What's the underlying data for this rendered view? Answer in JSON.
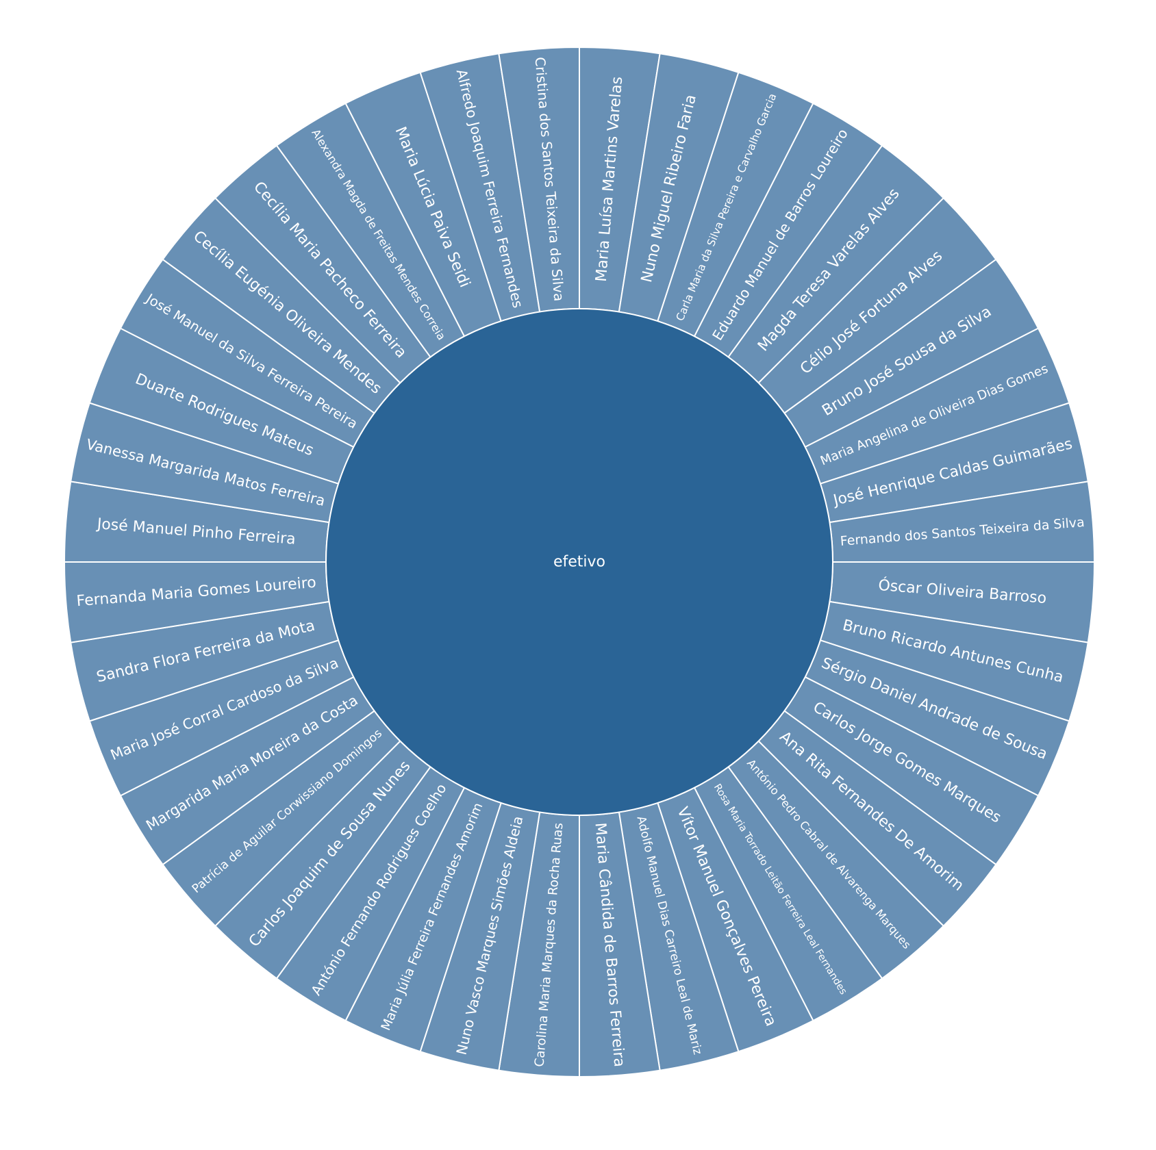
{
  "chart_data": {
    "type": "sunburst",
    "root": {
      "label": "efetivo",
      "color": "#2a6496"
    },
    "leaf_color": "#6890b5",
    "stroke_color": "#ffffff",
    "label_color": "#ffffff",
    "start_angle_deg": 0,
    "direction": "clockwise",
    "children": [
      {
        "label": "Maria Luísa Martins Varelas",
        "value": 1
      },
      {
        "label": "Nuno Miguel Ribeiro Faria",
        "value": 1
      },
      {
        "label": "Carla Maria da Silva Pereira e Carvalho Garcia",
        "value": 1
      },
      {
        "label": "Eduardo Manuel de Barros Loureiro",
        "value": 1
      },
      {
        "label": "Magda Teresa Varelas Alves",
        "value": 1
      },
      {
        "label": "Célio José Fortuna Alves",
        "value": 1
      },
      {
        "label": "Bruno José Sousa da Silva",
        "value": 1
      },
      {
        "label": "Maria Angelina de Oliveira Dias Gomes",
        "value": 1
      },
      {
        "label": "José Henrique Caldas Guimarães",
        "value": 1
      },
      {
        "label": "Fernando dos Santos Teixeira da Silva",
        "value": 1
      },
      {
        "label": "Óscar Oliveira Barroso",
        "value": 1
      },
      {
        "label": "Bruno Ricardo Antunes Cunha",
        "value": 1
      },
      {
        "label": "Sérgio Daniel Andrade de Sousa",
        "value": 1
      },
      {
        "label": "Carlos Jorge Gomes Marques",
        "value": 1
      },
      {
        "label": "Ana Rita Fernandes De Amorim",
        "value": 1
      },
      {
        "label": "António Pedro Cabral de Alvarenga Marques",
        "value": 1
      },
      {
        "label": "Rosa Maria Torrado Leitão Ferreira Leal Fernandes",
        "value": 1
      },
      {
        "label": "Vítor Manuel Gonçalves Pereira",
        "value": 1
      },
      {
        "label": "Adolfo Manuel Dias Carreiro Leal de Mariz",
        "value": 1
      },
      {
        "label": "Maria Cândida de Barros Ferreira",
        "value": 1
      },
      {
        "label": "Carolina Maria Marques da Rocha Ruas",
        "value": 1
      },
      {
        "label": "Nuno Vasco Marques Simões Aldeia",
        "value": 1
      },
      {
        "label": "Maria Júlia Ferreira Fernandes Amorim",
        "value": 1
      },
      {
        "label": "António Fernando Rodrigues Coelho",
        "value": 1
      },
      {
        "label": "Carlos Joaquim de Sousa Nunes",
        "value": 1
      },
      {
        "label": "Patrícia de Aguilar Corwissiano Domingos",
        "value": 1
      },
      {
        "label": "Margarida Maria Moreira da Costa",
        "value": 1
      },
      {
        "label": "Maria José Corral Cardoso da Silva",
        "value": 1
      },
      {
        "label": "Sandra Flora Ferreira da Mota",
        "value": 1
      },
      {
        "label": "Fernanda Maria Gomes Loureiro",
        "value": 1
      },
      {
        "label": "José Manuel Pinho Ferreira",
        "value": 1
      },
      {
        "label": "Vanessa Margarida Matos Ferreira",
        "value": 1
      },
      {
        "label": "Duarte Rodrigues Mateus",
        "value": 1
      },
      {
        "label": "José Manuel da Silva Ferreira Pereira",
        "value": 1
      },
      {
        "label": "Cecília Eugénia Oliveira Mendes",
        "value": 1
      },
      {
        "label": "Cecília Maria Pacheco Ferreira",
        "value": 1
      },
      {
        "label": "Alexandra Magda de Freitas Mendes Correia",
        "value": 1
      },
      {
        "label": "Maria Lúcia Paiva Seidi",
        "value": 1
      },
      {
        "label": "Alfredo Joaquim Ferreira Fernandes",
        "value": 1
      },
      {
        "label": "Cristina dos Santos Teixeira da Silva",
        "value": 1
      }
    ]
  }
}
